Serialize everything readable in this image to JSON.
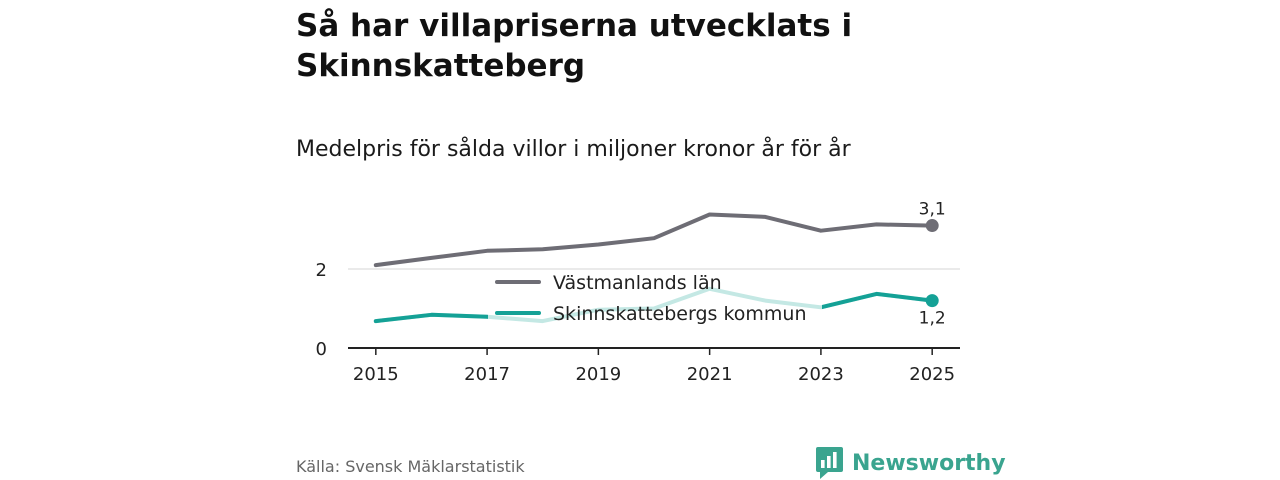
{
  "header": {
    "title": "Så har villapriserna utvecklats i Skinnskatteberg",
    "subtitle": "Medelpris för sålda villor i miljoner kronor år för år"
  },
  "footer": {
    "source": "Källa: Svensk Mäklarstatistik",
    "brand": "Newsworthy"
  },
  "colors": {
    "grey_series": "#6e6d75",
    "teal_series": "#14a196",
    "teal_faded": "#c4e8e4",
    "brand": "#3aa48f"
  },
  "chart_data": {
    "type": "line",
    "title": "Så har villapriserna utvecklats i Skinnskatteberg",
    "subtitle": "Medelpris för sålda villor i miljoner kronor år för år",
    "x": [
      2015,
      2016,
      2017,
      2018,
      2019,
      2020,
      2021,
      2022,
      2023,
      2024,
      2025
    ],
    "x_ticks": [
      "2015",
      "2017",
      "2019",
      "2021",
      "2023",
      "2025"
    ],
    "y_ticks": [
      "0",
      "2"
    ],
    "ylim": [
      0,
      3.6
    ],
    "grid": "horizontal at 2",
    "legend_position": "inside, center",
    "series": [
      {
        "name": "Västmanlands län",
        "color": "#6e6d75",
        "values": [
          2.1,
          2.28,
          2.46,
          2.5,
          2.62,
          2.78,
          3.38,
          3.32,
          2.97,
          3.13,
          3.1
        ],
        "end_label": "3,1"
      },
      {
        "name": "Skinnskattebergs kommun",
        "color": "#14a196",
        "values": [
          0.68,
          0.84,
          0.79,
          0.68,
          0.97,
          1.0,
          1.5,
          1.2,
          1.03,
          1.37,
          1.2
        ],
        "end_label": "1,2"
      }
    ]
  }
}
